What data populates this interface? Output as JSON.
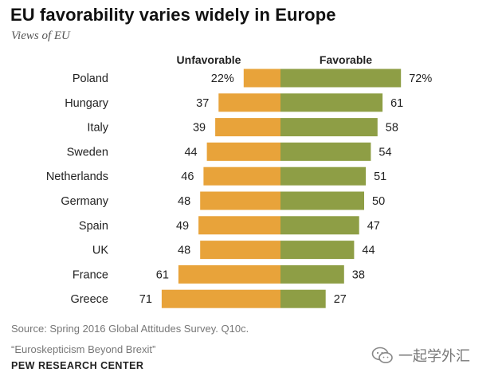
{
  "header": {
    "title": "EU favorability varies widely in Europe",
    "subtitle": "Views of EU"
  },
  "colors": {
    "unfavorable": "#E8A33A",
    "favorable": "#8E9E45"
  },
  "chart_data": {
    "type": "bar",
    "orientation": "horizontal-diverging",
    "title": "EU favorability varies widely in Europe",
    "subtitle": "Views of EU",
    "categories": [
      "Poland",
      "Hungary",
      "Italy",
      "Sweden",
      "Netherlands",
      "Germany",
      "Spain",
      "UK",
      "France",
      "Greece"
    ],
    "series": [
      {
        "name": "Unfavorable",
        "values": [
          22,
          37,
          39,
          44,
          46,
          48,
          49,
          48,
          61,
          71
        ],
        "labels": [
          "22%",
          "37",
          "39",
          "44",
          "46",
          "48",
          "49",
          "48",
          "61",
          "71"
        ]
      },
      {
        "name": "Favorable",
        "values": [
          72,
          61,
          58,
          54,
          51,
          50,
          47,
          44,
          38,
          27
        ],
        "labels": [
          "72%",
          "61",
          "58",
          "54",
          "51",
          "50",
          "47",
          "44",
          "38",
          "27"
        ]
      }
    ],
    "xlim": [
      -75,
      75
    ],
    "grid": false
  },
  "footer": {
    "source_line1": "Source: Spring 2016 Global Attitudes Survey. Q10c.",
    "source_line2": "“Euroskepticism Beyond Brexit”",
    "organization": "PEW RESEARCH CENTER",
    "watermark": "一起学外汇"
  }
}
